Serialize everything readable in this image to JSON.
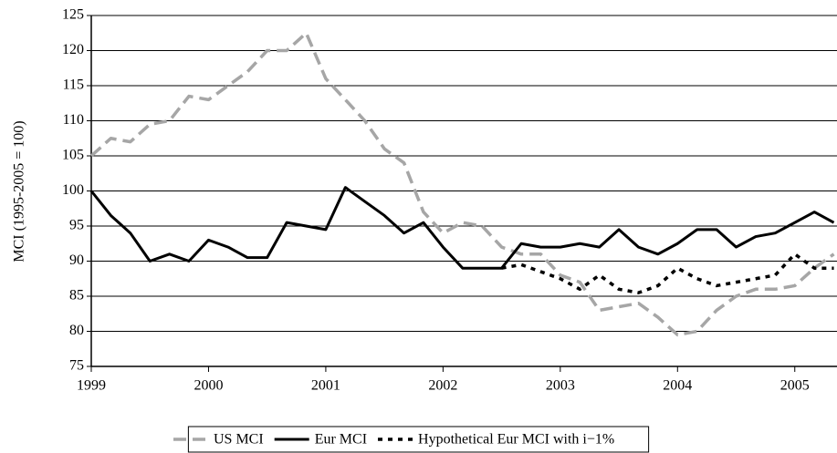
{
  "chart_data": {
    "type": "line",
    "ylabel": "MCI (1995-2005 = 100)",
    "x": [
      1999,
      1999.167,
      1999.333,
      1999.5,
      1999.667,
      1999.833,
      2000,
      2000.167,
      2000.333,
      2000.5,
      2000.667,
      2000.833,
      2001,
      2001.167,
      2001.333,
      2001.5,
      2001.667,
      2001.833,
      2002,
      2002.167,
      2002.333,
      2002.5,
      2002.667,
      2002.833,
      2003,
      2003.167,
      2003.333,
      2003.5,
      2003.667,
      2003.833,
      2004,
      2004.167,
      2004.333,
      2004.5,
      2004.667,
      2004.833,
      2005,
      2005.167,
      2005.333
    ],
    "series": [
      {
        "name": "US MCI",
        "color": "#a6a6a6",
        "dash": "14 7",
        "width": 3.5,
        "values": [
          105,
          107.5,
          107,
          109.5,
          110,
          113.5,
          113,
          115,
          117,
          120,
          120,
          122.5,
          116,
          113,
          110,
          106,
          104,
          97,
          94,
          95.5,
          95,
          92,
          91,
          91,
          88,
          87,
          83,
          83.5,
          84,
          82,
          79.5,
          80,
          83,
          85,
          86,
          86,
          86.5,
          89,
          91
        ]
      },
      {
        "name": "Eur MCI",
        "color": "#000000",
        "dash": "",
        "width": 3,
        "values": [
          100,
          96.5,
          94,
          90,
          91,
          90,
          93,
          92,
          90.5,
          90.5,
          95.5,
          95,
          94.5,
          100.5,
          98.5,
          96.5,
          94,
          95.5,
          92,
          89,
          89,
          89,
          92.5,
          92,
          92,
          92.5,
          92,
          94.5,
          92,
          91,
          92.5,
          94.5,
          94.5,
          92,
          93.5,
          94,
          95.5,
          97,
          95.5
        ]
      },
      {
        "name": "Hypothetical Eur MCI with i−1%",
        "color": "#000000",
        "dash": "5 6",
        "width": 3.5,
        "values": [
          null,
          null,
          null,
          null,
          null,
          null,
          null,
          null,
          null,
          null,
          null,
          null,
          null,
          null,
          null,
          null,
          null,
          null,
          null,
          null,
          null,
          89,
          89.5,
          88.5,
          87.5,
          86,
          88,
          86,
          85.5,
          86.5,
          89,
          87.5,
          86.5,
          87,
          87.5,
          88,
          91,
          89,
          89
        ]
      }
    ],
    "xlim": [
      1999,
      2005.36
    ],
    "xticks": [
      1999,
      2000,
      2001,
      2002,
      2003,
      2004,
      2005
    ],
    "ylim": [
      75,
      125
    ],
    "yticks": [
      75,
      80,
      85,
      90,
      95,
      100,
      105,
      110,
      115,
      120,
      125
    ],
    "grid": true,
    "legend": "bottom"
  }
}
